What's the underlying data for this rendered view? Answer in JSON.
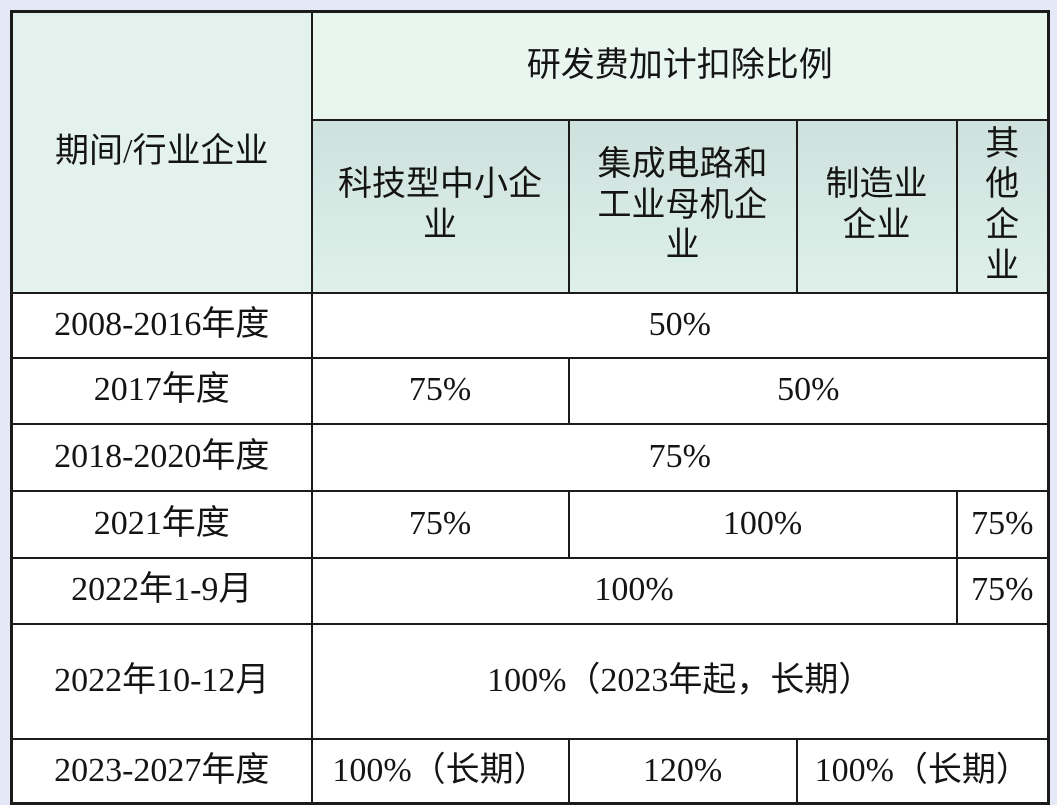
{
  "colors": {
    "page_background": "#e4e8f7",
    "header_group_bg": "#e9f6f0",
    "header_corner_bg": "#e3f2ec",
    "subheader_bg_top": "#cfe1dd",
    "subheader_bg_bottom": "#def0e9",
    "body_cell_bg": "#ffffff",
    "border": "#1b1b1b",
    "text": "#141414"
  },
  "table": {
    "header": {
      "corner_label": "期间/行业企业",
      "group_label": "研发费加计扣除比例",
      "columns": [
        "科技型中小企\n业",
        "集成电路和\n工业母机企\n业",
        "制造业\n企业",
        "其\n他\n企\n业"
      ]
    },
    "rows": [
      {
        "label": "2008-2016年度",
        "cells": [
          {
            "text": "50%",
            "colspan": 4
          }
        ]
      },
      {
        "label": "2017年度",
        "cells": [
          {
            "text": "75%",
            "colspan": 1
          },
          {
            "text": "50%",
            "colspan": 3
          }
        ]
      },
      {
        "label": "2018-2020年度",
        "cells": [
          {
            "text": "75%",
            "colspan": 4
          }
        ]
      },
      {
        "label": "2021年度",
        "cells": [
          {
            "text": "75%",
            "colspan": 1
          },
          {
            "text": "100%",
            "colspan": 2
          },
          {
            "text": "75%",
            "colspan": 1
          }
        ]
      },
      {
        "label": "2022年1-9月",
        "cells": [
          {
            "text": "100%",
            "colspan": 3
          },
          {
            "text": "75%",
            "colspan": 1
          }
        ]
      },
      {
        "label": "2022年10-12月",
        "cells": [
          {
            "text": "100%（2023年起，长期）",
            "colspan": 4
          }
        ]
      },
      {
        "label": "2023-2027年度",
        "cells": [
          {
            "text": "100%（长期）",
            "colspan": 1
          },
          {
            "text": "120%",
            "colspan": 1
          },
          {
            "text": "100%（长期）",
            "colspan": 2
          }
        ]
      }
    ]
  }
}
